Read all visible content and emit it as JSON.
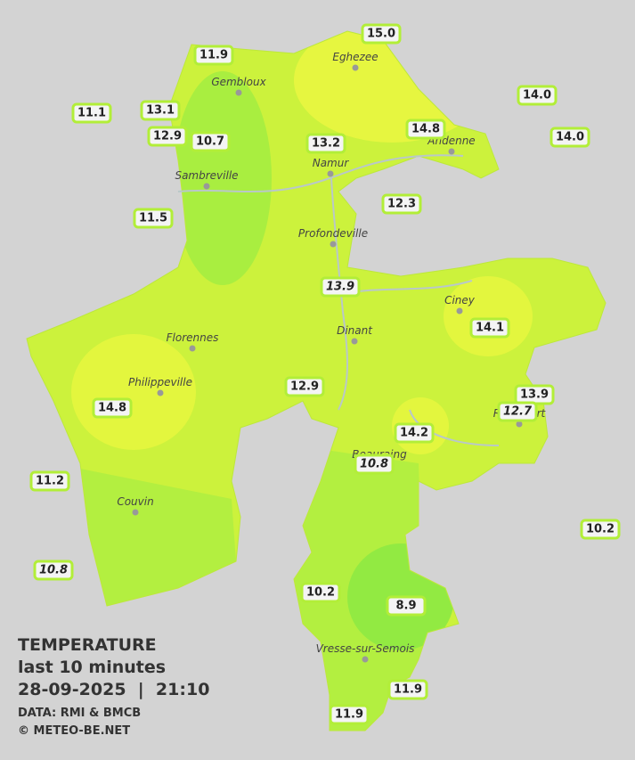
{
  "legend": {
    "title": "TEMPERATURE",
    "subtitle": "last 10 minutes",
    "datetime": "28-09-2025  |  21:10",
    "source": "DATA: RMI & BMCB",
    "credit": "© METEO-BE.NET"
  },
  "cities": [
    "Eghezee",
    "Gembloux",
    "Andenne",
    "Namur",
    "Sambreville",
    "Profondeville",
    "Ciney",
    "Dinant",
    "Florennes",
    "Philippeville",
    "Rochefort",
    "Beauraing",
    "Couvin",
    "Vresse-sur-Semois"
  ],
  "stations": [
    {
      "label": "15.0"
    },
    {
      "label": "11.9"
    },
    {
      "label": "14.0"
    },
    {
      "label": "11.1"
    },
    {
      "label": "13.1"
    },
    {
      "label": "12.9"
    },
    {
      "label": "10.7"
    },
    {
      "label": "13.2"
    },
    {
      "label": "14.8"
    },
    {
      "label": "14.0"
    },
    {
      "label": "12.3"
    },
    {
      "label": "11.5"
    },
    {
      "label": "13.9",
      "italic": true
    },
    {
      "label": "14.1"
    },
    {
      "label": "12.9"
    },
    {
      "label": "13.9"
    },
    {
      "label": "12.7",
      "italic": true
    },
    {
      "label": "14.8"
    },
    {
      "label": "14.2"
    },
    {
      "label": "10.8",
      "italic": true
    },
    {
      "label": "11.2"
    },
    {
      "label": "10.2"
    },
    {
      "label": "10.8",
      "italic": true
    },
    {
      "label": "10.2"
    },
    {
      "label": "8.9"
    },
    {
      "label": "11.9"
    },
    {
      "label": "11.9"
    }
  ]
}
